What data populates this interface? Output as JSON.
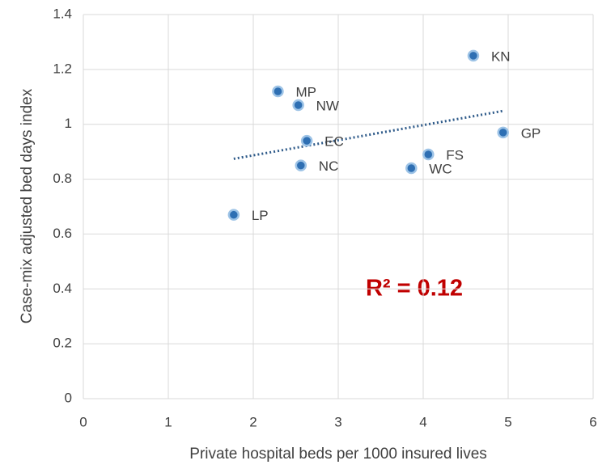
{
  "chart_data": {
    "type": "scatter",
    "x_label": "Private hospital beds per 1000 insured lives",
    "y_label": "Case-mix adjusted bed days index",
    "labels": [
      "KN",
      "MP",
      "NW",
      "EC",
      "NC",
      "LP",
      "FS",
      "WC",
      "GP"
    ],
    "x": [
      4.59,
      2.29,
      2.53,
      2.63,
      2.56,
      1.77,
      4.06,
      3.86,
      4.94
    ],
    "values": [
      1.25,
      1.12,
      1.07,
      0.94,
      0.85,
      0.67,
      0.89,
      0.84,
      0.97
    ],
    "color": "#2e6fb3",
    "trendline": true,
    "annotation": "R² = 0.12",
    "xlim": [
      0,
      6
    ],
    "xticks": [
      0,
      1,
      2,
      3,
      4,
      5,
      6
    ],
    "ylim": [
      0,
      1.4
    ],
    "yticks": [
      0,
      0.2,
      0.4,
      0.6,
      0.8,
      1,
      1.2,
      1.4
    ],
    "grid": true
  }
}
